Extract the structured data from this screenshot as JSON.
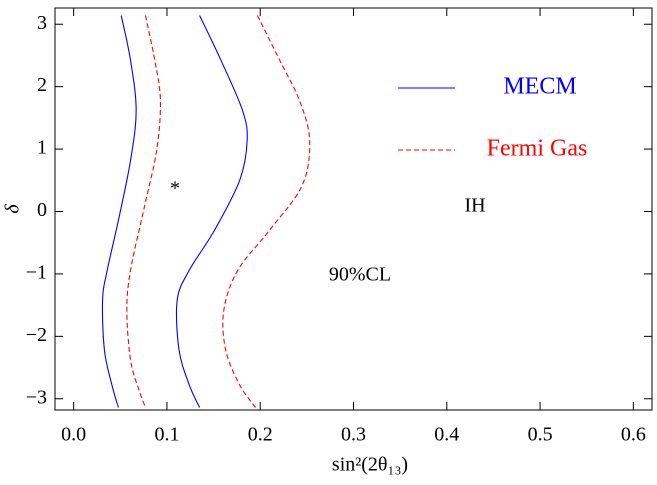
{
  "chart_data": {
    "type": "line",
    "xlabel": "sin²(2θ₁₃)",
    "ylabel": "δ",
    "xlim": [
      -0.02,
      0.62
    ],
    "ylim": [
      -3.18,
      3.26
    ],
    "xticks": [
      {
        "value": 0,
        "label": "0.0"
      },
      0.1,
      0.2,
      0.3,
      0.4,
      0.5,
      0.6
    ],
    "yticks": [
      -3,
      -2,
      -1,
      0,
      1,
      2,
      3
    ],
    "annotations": [
      "*",
      "IH",
      "90%CL"
    ],
    "series": [
      {
        "name": "MECM",
        "color": "#0000ff",
        "dash": "solid",
        "x": [
          0.051,
          0.061,
          0.067,
          0.061,
          0.048,
          0.036,
          0.031,
          0.033,
          0.041,
          0.048,
          null,
          0.135,
          0.158,
          0.181,
          0.186,
          0.178,
          0.151,
          0.124,
          0.111,
          0.113,
          0.124,
          0.135
        ],
        "values": [
          3.14,
          2.42,
          1.62,
          0.82,
          -0.14,
          -0.94,
          -1.42,
          -2.22,
          -2.78,
          -3.14,
          null,
          3.14,
          2.42,
          1.62,
          1.14,
          0.5,
          -0.3,
          -0.94,
          -1.42,
          -2.22,
          -2.78,
          -3.14
        ]
      },
      {
        "name": "Fermi Gas",
        "color": "#ff0000",
        "dash": "dashed",
        "x": [
          0.077,
          0.087,
          0.093,
          0.089,
          0.075,
          0.061,
          0.057,
          0.061,
          0.07,
          0.077,
          null,
          0.197,
          0.221,
          0.242,
          0.253,
          0.245,
          0.21,
          0.176,
          0.161,
          0.163,
          0.178,
          0.195
        ],
        "values": [
          3.14,
          2.42,
          1.78,
          0.98,
          0.02,
          -0.94,
          -1.58,
          -2.38,
          -2.86,
          -3.14,
          null,
          3.14,
          2.42,
          1.78,
          1.14,
          0.42,
          -0.3,
          -0.94,
          -1.58,
          -2.22,
          -2.78,
          -3.14
        ]
      }
    ]
  }
}
